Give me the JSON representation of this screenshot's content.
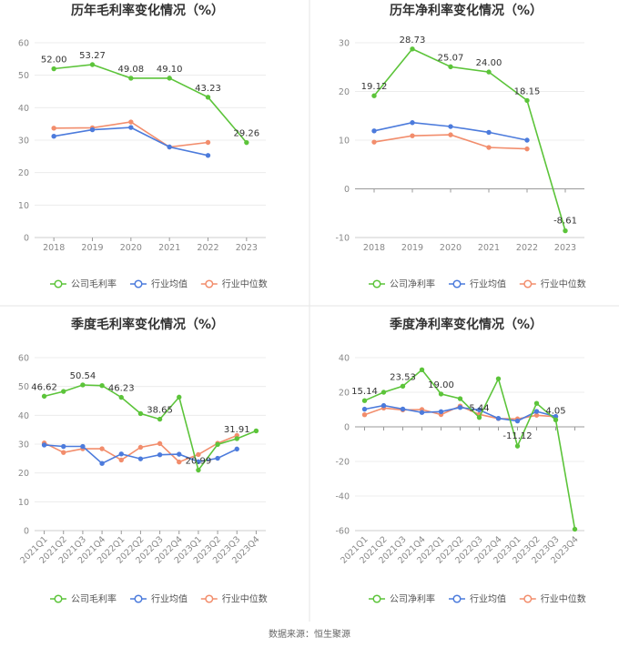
{
  "colors": {
    "company": "#5cc43a",
    "avg": "#4c7bdc",
    "median": "#f28d6c",
    "grid": "#ececec",
    "axis": "#cccccc",
    "divider": "#e6e6e6"
  },
  "source": "数据来源：恒生聚源",
  "chart_data": [
    {
      "type": "line",
      "title": "历年毛利率变化情况（%）",
      "categories": [
        "2018",
        "2019",
        "2020",
        "2021",
        "2022",
        "2023"
      ],
      "ylim": [
        0,
        60
      ],
      "yticks": [
        0,
        10,
        20,
        30,
        40,
        50,
        60
      ],
      "series": [
        {
          "name": "公司毛利率",
          "values": [
            52.0,
            53.27,
            49.08,
            49.1,
            43.23,
            29.26
          ],
          "labels": [
            "52.00",
            "53.27",
            "49.08",
            "49.10",
            "43.23",
            "29.26"
          ]
        },
        {
          "name": "行业均值",
          "values": [
            31.2,
            33.2,
            33.9,
            27.9,
            25.3,
            null
          ]
        },
        {
          "name": "行业中位数",
          "values": [
            33.7,
            33.8,
            35.6,
            27.9,
            29.3,
            null
          ]
        }
      ],
      "legend": "bottom"
    },
    {
      "type": "line",
      "title": "历年净利率变化情况（%）",
      "categories": [
        "2018",
        "2019",
        "2020",
        "2021",
        "2022",
        "2023"
      ],
      "ylim": [
        -10,
        30
      ],
      "yticks": [
        -10,
        0,
        10,
        20,
        30
      ],
      "series": [
        {
          "name": "公司净利率",
          "values": [
            19.12,
            28.73,
            25.07,
            24.0,
            18.15,
            -8.61
          ],
          "labels": [
            "19.12",
            "28.73",
            "25.07",
            "24.00",
            "18.15",
            "-8.61"
          ]
        },
        {
          "name": "行业均值",
          "values": [
            11.9,
            13.6,
            12.8,
            11.6,
            10.0,
            null
          ]
        },
        {
          "name": "行业中位数",
          "values": [
            9.6,
            10.9,
            11.1,
            8.5,
            8.2,
            null
          ]
        }
      ],
      "legend": "bottom"
    },
    {
      "type": "line",
      "title": "季度毛利率变化情况（%）",
      "categories": [
        "2021Q1",
        "2021Q2",
        "2021Q3",
        "2021Q4",
        "2022Q1",
        "2022Q2",
        "2022Q3",
        "2022Q4",
        "2023Q1",
        "2023Q2",
        "2023Q3",
        "2023Q4"
      ],
      "ylim": [
        0,
        60
      ],
      "yticks": [
        0,
        10,
        20,
        30,
        40,
        50,
        60
      ],
      "series": [
        {
          "name": "公司毛利率",
          "values": [
            46.62,
            48.3,
            50.54,
            50.3,
            46.23,
            40.6,
            38.65,
            46.3,
            21.0,
            29.9,
            31.91,
            34.6
          ],
          "labels": [
            "46.62",
            "",
            "50.54",
            "",
            "46.23",
            "",
            "38.65",
            "",
            "20.99",
            "",
            "31.91",
            ""
          ]
        },
        {
          "name": "行业均值",
          "values": [
            29.7,
            29.2,
            29.2,
            23.3,
            26.6,
            24.9,
            26.3,
            26.5,
            23.9,
            25.1,
            28.3,
            null
          ]
        },
        {
          "name": "行业中位数",
          "values": [
            30.4,
            27.1,
            28.4,
            28.4,
            24.5,
            28.9,
            30.2,
            23.8,
            26.4,
            30.3,
            33.0,
            null
          ]
        }
      ],
      "legend": "bottom"
    },
    {
      "type": "line",
      "title": "季度净利率变化情况（%）",
      "categories": [
        "2021Q1",
        "2021Q2",
        "2021Q3",
        "2021Q4",
        "2022Q1",
        "2022Q2",
        "2022Q3",
        "2022Q4",
        "2023Q1",
        "2023Q2",
        "2023Q3",
        "2023Q4"
      ],
      "ylim": [
        -60,
        40
      ],
      "yticks": [
        -60,
        -40,
        -20,
        0,
        20,
        40
      ],
      "series": [
        {
          "name": "公司净利率",
          "values": [
            15.14,
            20.0,
            23.53,
            33.0,
            19.0,
            16.3,
            5.44,
            27.8,
            -11.12,
            13.6,
            4.05,
            -59.2
          ],
          "labels": [
            "15.14",
            "",
            "23.53",
            "",
            "19.00",
            "",
            "5.44",
            "",
            "-11.12",
            "",
            "4.05",
            ""
          ]
        },
        {
          "name": "行业均值",
          "values": [
            10.2,
            12.3,
            10.3,
            8.3,
            8.8,
            11.2,
            9.8,
            4.9,
            3.4,
            8.9,
            6.0,
            null
          ]
        },
        {
          "name": "行业中位数",
          "values": [
            7.0,
            10.9,
            9.8,
            10.0,
            7.1,
            12.0,
            7.2,
            4.8,
            4.6,
            6.7,
            5.9,
            null
          ]
        }
      ],
      "legend": "bottom"
    }
  ]
}
